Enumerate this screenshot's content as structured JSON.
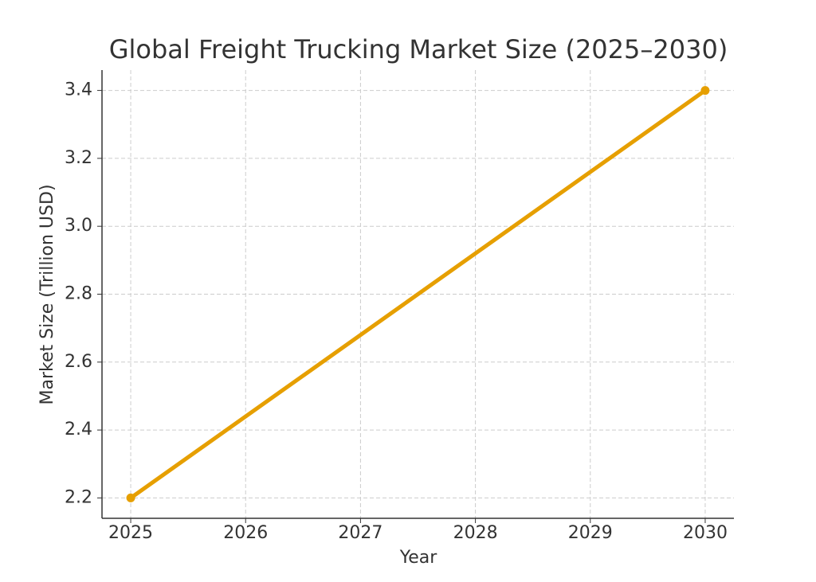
{
  "chart_data": {
    "type": "line",
    "title": "Global Freight Trucking Market Size (2025–2030)",
    "x_label": "Year",
    "y_label": "Market Size (Trillion USD)",
    "x": [
      2025,
      2030
    ],
    "series": [
      {
        "name": "Market Size",
        "color": "#e69f00",
        "values": [
          2.2,
          3.4
        ]
      }
    ],
    "xlim": [
      2024.75,
      2030.25
    ],
    "xticks": [
      2025,
      2026,
      2027,
      2028,
      2029,
      2030
    ],
    "ylim": [
      2.14,
      3.46
    ],
    "yticks": [
      2.2,
      2.4,
      2.6,
      2.8,
      {
        "value": 3,
        "label": "3.0"
      },
      3.2,
      3.4
    ],
    "grid": true
  }
}
